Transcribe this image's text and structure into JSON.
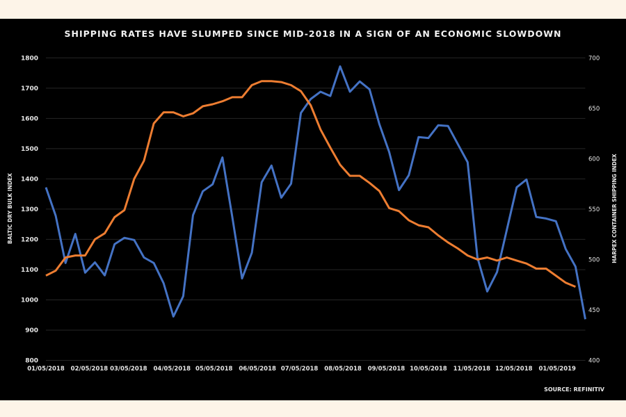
{
  "chart_data": {
    "type": "line",
    "title": "SHIPPING RATES HAVE SLUMPED SINCE MID-2018 IN A SIGN OF AN ECONOMIC SLOWDOWN",
    "source": "SOURCE: REFINITIV",
    "ylabel_left": "BALTIC DRY BULK INDEX",
    "ylabel_right": "HARPEX CONTAINER SHIPPING INDEX",
    "ylim_left": [
      800,
      1800
    ],
    "yticks_left": [
      800,
      900,
      1000,
      1100,
      1200,
      1300,
      1400,
      1500,
      1600,
      1700,
      1800
    ],
    "ylim_right": [
      400,
      700
    ],
    "yticks_right": [
      400,
      450,
      500,
      550,
      600,
      650,
      700
    ],
    "xtick_labels": [
      "01/05/2018",
      "02/05/2018",
      "03/05/2018",
      "04/05/2018",
      "05/05/2018",
      "06/05/2018",
      "07/05/2018",
      "08/05/2018",
      "09/05/2018",
      "10/05/2018",
      "11/05/2018",
      "12/05/2018",
      "01/05/2019"
    ],
    "xtick_dates": [
      "2018-01-05",
      "2018-02-05",
      "2018-03-05",
      "2018-04-05",
      "2018-05-05",
      "2018-06-05",
      "2018-07-05",
      "2018-08-05",
      "2018-09-05",
      "2018-10-05",
      "2018-11-05",
      "2018-12-05",
      "2019-01-05"
    ],
    "x": [
      "2018-01-05",
      "2018-01-12",
      "2018-01-19",
      "2018-01-26",
      "2018-02-02",
      "2018-02-09",
      "2018-02-16",
      "2018-02-23",
      "2018-03-02",
      "2018-03-09",
      "2018-03-16",
      "2018-03-23",
      "2018-03-30",
      "2018-04-06",
      "2018-04-13",
      "2018-04-20",
      "2018-04-27",
      "2018-05-04",
      "2018-05-11",
      "2018-05-18",
      "2018-05-25",
      "2018-06-01",
      "2018-06-08",
      "2018-06-15",
      "2018-06-22",
      "2018-06-29",
      "2018-07-06",
      "2018-07-13",
      "2018-07-20",
      "2018-07-27",
      "2018-08-03",
      "2018-08-10",
      "2018-08-17",
      "2018-08-24",
      "2018-08-31",
      "2018-09-07",
      "2018-09-14",
      "2018-09-21",
      "2018-09-28",
      "2018-10-05",
      "2018-10-12",
      "2018-10-19",
      "2018-10-26",
      "2018-11-02",
      "2018-11-09",
      "2018-11-16",
      "2018-11-23",
      "2018-11-30",
      "2018-12-07",
      "2018-12-14",
      "2018-12-21",
      "2018-12-28",
      "2019-01-04",
      "2019-01-11",
      "2019-01-18",
      "2019-01-25"
    ],
    "series": [
      {
        "axis": "left",
        "color": "#4472c4",
        "values": [
          1372,
          1278,
          1122,
          1218,
          1090,
          1124,
          1081,
          1184,
          1205,
          1198,
          1140,
          1122,
          1055,
          945,
          1012,
          1280,
          1359,
          1382,
          1471,
          1275,
          1071,
          1156,
          1389,
          1444,
          1338,
          1384,
          1618,
          1664,
          1688,
          1674,
          1772,
          1688,
          1722,
          1696,
          1581,
          1489,
          1363,
          1412,
          1538,
          1535,
          1577,
          1575,
          1515,
          1455,
          1140,
          1028,
          1092,
          1232,
          1372,
          1398,
          1274,
          1269,
          1260,
          1168,
          1110,
          936
        ]
      },
      {
        "axis": "right",
        "color": "#ed7d31",
        "values": [
          484,
          489,
          502,
          504,
          504,
          520,
          526,
          542,
          549,
          580,
          598,
          635,
          646,
          646,
          642,
          645,
          652,
          654,
          657,
          661,
          661,
          673,
          677,
          677,
          676,
          673,
          667,
          653,
          629,
          611,
          594,
          583,
          583,
          576,
          568,
          551,
          548,
          539,
          534,
          532,
          524,
          517,
          511,
          504,
          500,
          502,
          499,
          502,
          499,
          496,
          491,
          491,
          484,
          477,
          473,
          null
        ]
      }
    ],
    "grid": true,
    "legend": "none",
    "background": "#000000"
  }
}
